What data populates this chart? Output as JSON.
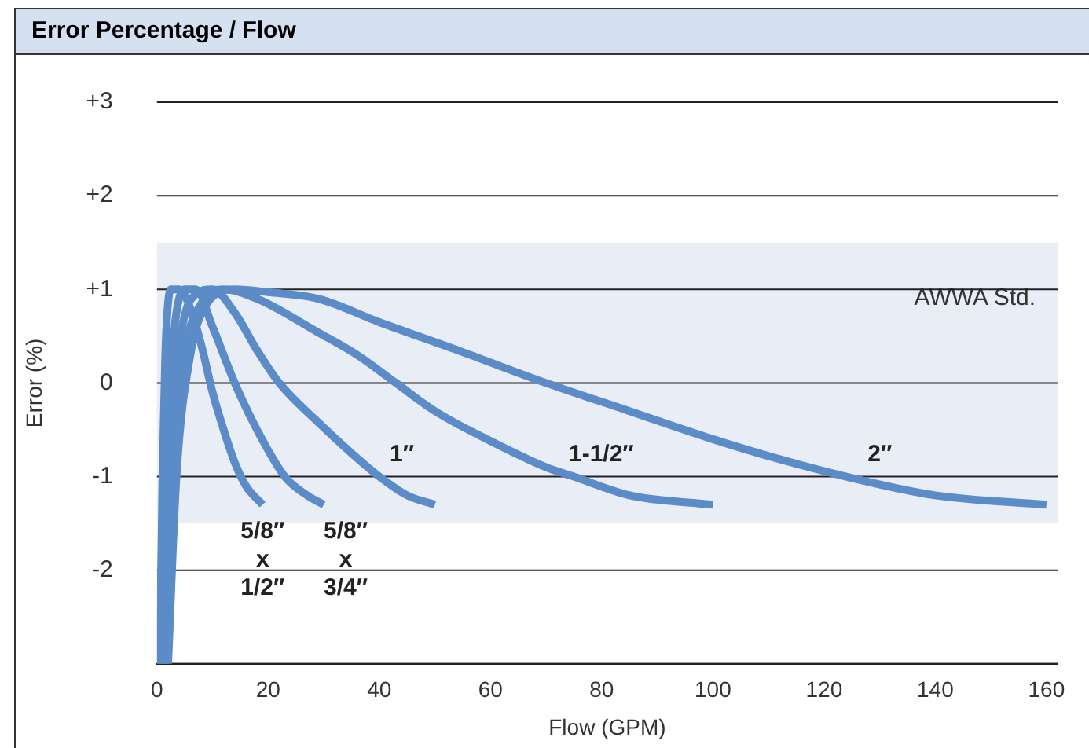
{
  "chart_data": {
    "type": "line",
    "title": "Error Percentage / Flow",
    "xlabel": "Flow (GPM)",
    "ylabel": "Error (%)",
    "xlim": [
      0,
      162
    ],
    "xticks": [
      0,
      20,
      40,
      60,
      80,
      100,
      120,
      140,
      160
    ],
    "ylim": [
      -3,
      3
    ],
    "yticks": [
      {
        "value": -3,
        "label": null
      },
      {
        "value": -2,
        "label": "-2"
      },
      {
        "value": -1,
        "label": "-1"
      },
      {
        "value": 0,
        "label": "0"
      },
      {
        "value": 1,
        "label": "+1"
      },
      {
        "value": 2,
        "label": "+2"
      },
      {
        "value": 3,
        "label": "+3"
      }
    ],
    "grid": "y",
    "legend": false,
    "marker": "none",
    "line_style": "solid",
    "bands": [
      {
        "axis": "y",
        "from": -1.5,
        "to": 1.5,
        "label": "AWWA Std.",
        "color": "#e8edf6"
      }
    ],
    "series": [
      {
        "name": "5/8″ x 1/2″",
        "color": "#5b8cc8",
        "x": [
          0.5,
          1,
          1.5,
          2.5,
          4,
          6,
          8,
          10,
          12,
          14,
          16,
          19
        ],
        "values": [
          -3,
          -1,
          0.3,
          1,
          1,
          0.8,
          0.4,
          -0.1,
          -0.5,
          -0.85,
          -1.1,
          -1.3
        ]
      },
      {
        "name": "5/8″ x 3/4″",
        "color": "#5b8cc8",
        "x": [
          0.7,
          1.5,
          3,
          5,
          7,
          10,
          14,
          18,
          23,
          27,
          30
        ],
        "values": [
          -3,
          -1,
          0.5,
          1,
          1,
          0.6,
          0,
          -0.5,
          -1,
          -1.2,
          -1.3
        ]
      },
      {
        "name": "1″",
        "color": "#5b8cc8",
        "x": [
          1,
          2,
          4,
          7,
          10,
          14,
          18,
          22,
          29,
          35,
          40,
          45,
          50
        ],
        "values": [
          -3,
          -1,
          0.4,
          0.95,
          1,
          0.75,
          0.35,
          0,
          -0.42,
          -0.75,
          -1,
          -1.2,
          -1.3
        ]
      },
      {
        "name": "1-1/2″",
        "color": "#5b8cc8",
        "x": [
          1.5,
          3,
          5,
          8,
          12,
          18,
          29,
          36,
          43,
          50,
          60,
          70,
          75,
          85,
          100
        ],
        "values": [
          -3,
          -1,
          0.3,
          0.85,
          1,
          0.9,
          0.54,
          0.3,
          0,
          -0.3,
          -0.62,
          -0.9,
          -1,
          -1.2,
          -1.3
        ]
      },
      {
        "name": "2″",
        "color": "#5b8cc8",
        "x": [
          2,
          3.5,
          6,
          9,
          14,
          20,
          29,
          40,
          55,
          70,
          85,
          100,
          110,
          124,
          140,
          160
        ],
        "values": [
          -3,
          -1,
          0.3,
          0.85,
          1,
          0.97,
          0.9,
          0.65,
          0.33,
          0,
          -0.3,
          -0.6,
          -0.78,
          -1,
          -1.2,
          -1.3
        ]
      }
    ]
  }
}
